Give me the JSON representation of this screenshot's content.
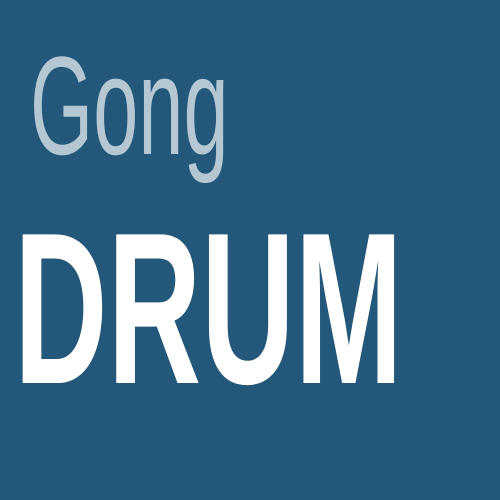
{
  "wordmark": {
    "line1": "Gong",
    "line2": "DRUM"
  },
  "colors": {
    "background": "#23587a",
    "line1_text": "#b6c7d4",
    "line2_text": "#ffffff"
  }
}
